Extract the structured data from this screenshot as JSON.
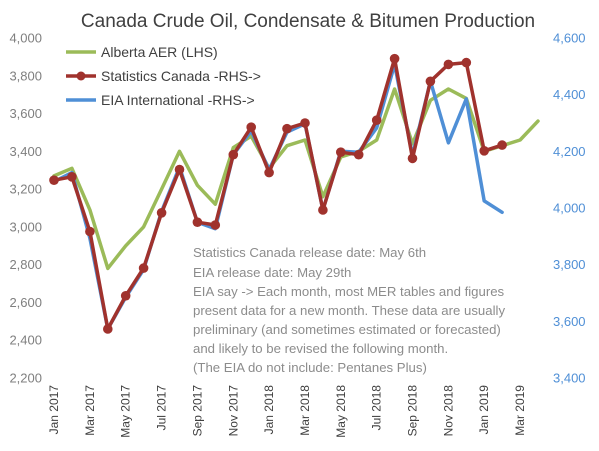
{
  "chart_data": {
    "type": "line",
    "title": "Canada Crude Oil, Condensate & Bitumen Production",
    "x_tick_labels": [
      "Jan 2017",
      "Mar 2017",
      "May 2017",
      "Jul 2017",
      "Sep 2017",
      "Nov 2017",
      "Jan 2018",
      "Mar 2018",
      "May 2018",
      "Jul 2018",
      "Sep 2018",
      "Nov 2018",
      "Jan 2019",
      "Mar 2019"
    ],
    "x": [
      "Jan 2017",
      "Feb 2017",
      "Mar 2017",
      "Apr 2017",
      "May 2017",
      "Jun 2017",
      "Jul 2017",
      "Aug 2017",
      "Sep 2017",
      "Oct 2017",
      "Nov 2017",
      "Dec 2017",
      "Jan 2018",
      "Feb 2018",
      "Mar 2018",
      "Apr 2018",
      "May 2018",
      "Jun 2018",
      "Jul 2018",
      "Aug 2018",
      "Sep 2018",
      "Oct 2018",
      "Nov 2018",
      "Dec 2018",
      "Jan 2019",
      "Feb 2019",
      "Mar 2019",
      "Apr 2019"
    ],
    "left_axis": {
      "ylim": [
        2200,
        4000
      ],
      "ticks": [
        "2,200",
        "2,400",
        "2,600",
        "2,800",
        "3,000",
        "3,200",
        "3,400",
        "3,600",
        "3,800",
        "4,000"
      ]
    },
    "right_axis": {
      "ylim": [
        3400,
        4600
      ],
      "ticks": [
        "3,400",
        "3,600",
        "3,800",
        "4,000",
        "4,200",
        "4,400",
        "4,600"
      ]
    },
    "series": [
      {
        "name": "Alberta AER (LHS)",
        "axis": "left",
        "color": "#9bbb59",
        "markers": false,
        "values": [
          3270,
          3310,
          3090,
          2780,
          2900,
          3000,
          3200,
          3400,
          3220,
          3120,
          3420,
          3480,
          3310,
          3430,
          3460,
          3160,
          3370,
          3400,
          3460,
          3730,
          3440,
          3670,
          3730,
          3680,
          3400,
          3430,
          3460,
          3560
        ]
      },
      {
        "name": "Statistics Canada -RHS->",
        "axis": "right",
        "color": "#a0322d",
        "markers": true,
        "values": [
          4098,
          4110,
          3917,
          3573,
          3690,
          3788,
          3983,
          4136,
          3950,
          3940,
          4188,
          4285,
          4125,
          4280,
          4300,
          3993,
          4197,
          4188,
          4310,
          4527,
          4175,
          4447,
          4507,
          4513,
          4202,
          4222,
          null,
          null
        ]
      },
      {
        "name": "EIA International -RHS->",
        "axis": "right",
        "color": "#4f8fd6",
        "markers": false,
        "values": [
          4093,
          4125,
          3893,
          3573,
          3685,
          3783,
          3988,
          4145,
          3950,
          3927,
          4188,
          4272,
          4135,
          4268,
          4297,
          3993,
          4200,
          4197,
          4283,
          4507,
          4185,
          4448,
          4230,
          4385,
          4025,
          3985,
          null,
          null
        ]
      }
    ],
    "legend_position": "top-left",
    "annotation_lines": [
      "Statistics Canada release date: May 6th",
      "EIA release date: May 29th",
      "EIA say -> Each month, most MER tables and figures",
      "present data for a new month. These data are usually",
      "preliminary (and sometimes estimated or forecasted)",
      "and likely to be revised the following month.",
      "(The EIA do not include: Pentanes Plus)"
    ]
  }
}
